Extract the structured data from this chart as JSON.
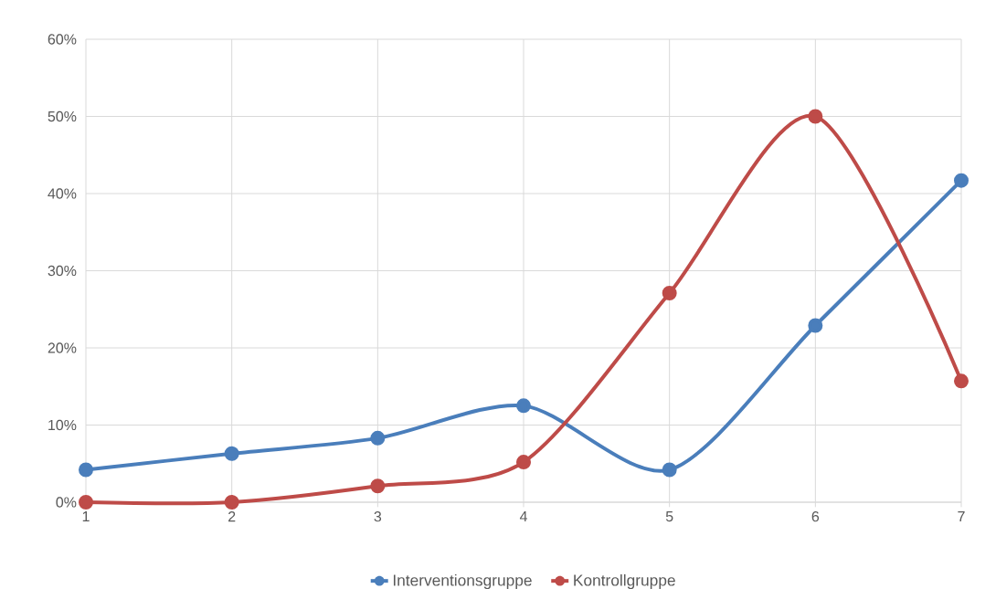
{
  "chart_data": {
    "type": "line",
    "x": [
      1,
      2,
      3,
      4,
      5,
      6,
      7
    ],
    "series": [
      {
        "name": "Interventionsgruppe",
        "color": "#4a7ebb",
        "values": [
          4.2,
          6.3,
          8.3,
          12.5,
          4.2,
          22.9,
          41.7
        ]
      },
      {
        "name": "Kontrollgruppe",
        "color": "#be4b48",
        "values": [
          0,
          0,
          2.1,
          5.2,
          27.1,
          50.0,
          15.7
        ]
      }
    ],
    "xlim": [
      1,
      7
    ],
    "xticks": [
      1,
      2,
      3,
      4,
      5,
      6,
      7
    ],
    "ylim": [
      0,
      60
    ],
    "yticks": [
      {
        "value": 0,
        "label": "0%"
      },
      {
        "value": 10,
        "label": "10%"
      },
      {
        "value": 20,
        "label": "20%"
      },
      {
        "value": 30,
        "label": "30%"
      },
      {
        "value": 40,
        "label": "40%"
      },
      {
        "value": 50,
        "label": "50%"
      },
      {
        "value": 60,
        "label": "60%"
      }
    ],
    "grid": true,
    "legend": "bottom",
    "marker": "circle",
    "line_style": "solid"
  }
}
